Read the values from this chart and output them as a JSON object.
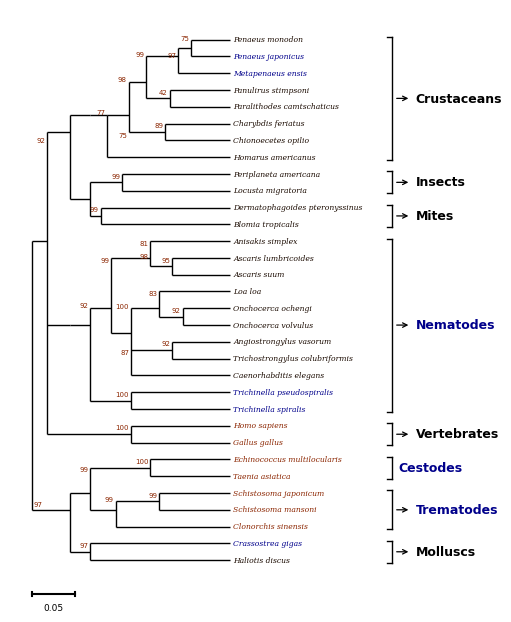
{
  "figsize": [
    5.07,
    6.08
  ],
  "dpi": 100,
  "scale_bar_label": "0.05",
  "taxa": [
    "Penaeus monodon",
    "Penaeus japonicus",
    "Metapenaeus ensis",
    "Panulirus stimpsoni",
    "Paralithodes camtschaticus",
    "Charybdis feriatus",
    "Chionoecetes opilio",
    "Homarus americanus",
    "Periplaneta americana",
    "Locusta migratoria",
    "Dermatophagoides pteronyssinus",
    "Blomia tropicalis",
    "Anisakis simplex",
    "Ascaris lumbricoides",
    "Ascaris suum",
    "Loa loa",
    "Onchocerca ochengi",
    "Onchocerca volvulus",
    "Angiostrongylus vasorum",
    "Trichostrongylus colubriformis",
    "Caenorhabditis elegans",
    "Trichinella pseudospiralis",
    "Trichinella spiralis",
    "Homo sapiens",
    "Gallus gallus",
    "Echinococcus multilocularis",
    "Taenia asiatica",
    "Schistosoma japonicum",
    "Schistosoma mansoni",
    "Clonorchis sinensis",
    "Crassostrea gigas",
    "Haliotis discus"
  ],
  "taxon_colors": {
    "Penaeus monodon": "#1a0a00",
    "Penaeus japonicus": "#00008B",
    "Metapenaeus ensis": "#00008B",
    "Panulirus stimpsoni": "#1a0a00",
    "Paralithodes camtschaticus": "#1a0a00",
    "Charybdis feriatus": "#1a0a00",
    "Chionoecetes opilio": "#1a0a00",
    "Homarus americanus": "#1a0a00",
    "Periplaneta americana": "#1a0a00",
    "Locusta migratoria": "#1a0a00",
    "Dermatophagoides pteronyssinus": "#1a0a00",
    "Blomia tropicalis": "#1a0a00",
    "Anisakis simplex": "#1a0a00",
    "Ascaris lumbricoides": "#1a0a00",
    "Ascaris suum": "#1a0a00",
    "Loa loa": "#1a0a00",
    "Onchocerca ochengi": "#1a0a00",
    "Onchocerca volvulus": "#1a0a00",
    "Angiostrongylus vasorum": "#1a0a00",
    "Trichostrongylus colubriformis": "#1a0a00",
    "Caenorhabditis elegans": "#1a0a00",
    "Trichinella pseudospiralis": "#00008B",
    "Trichinella spiralis": "#00008B",
    "Homo sapiens": "#8B2500",
    "Gallus gallus": "#8B2500",
    "Echinococcus multilocularis": "#8B2500",
    "Taenia asiatica": "#8B2500",
    "Schistosoma japonicum": "#8B2500",
    "Schistosoma mansoni": "#8B2500",
    "Clonorchis sinensis": "#8B2500",
    "Crassostrea gigas": "#00008B",
    "Haliotis discus": "#1a0a00"
  },
  "groups": [
    {
      "name": "Crustaceans",
      "color": "#000000",
      "t1": "Penaeus monodon",
      "t2": "Homarus americanus",
      "arrow": true,
      "bold": true,
      "fontsize": 9
    },
    {
      "name": "Insects",
      "color": "#000000",
      "t1": "Periplaneta americana",
      "t2": "Locusta migratoria",
      "arrow": true,
      "bold": true,
      "fontsize": 9
    },
    {
      "name": "Mites",
      "color": "#000000",
      "t1": "Dermatophagoides pteronyssinus",
      "t2": "Blomia tropicalis",
      "arrow": true,
      "bold": true,
      "fontsize": 9
    },
    {
      "name": "Nematodes",
      "color": "#00008B",
      "t1": "Anisakis simplex",
      "t2": "Trichinella spiralis",
      "arrow": true,
      "bold": true,
      "fontsize": 9
    },
    {
      "name": "Vertebrates",
      "color": "#000000",
      "t1": "Homo sapiens",
      "t2": "Gallus gallus",
      "arrow": true,
      "bold": true,
      "fontsize": 9
    },
    {
      "name": "Cestodes",
      "color": "#00008B",
      "t1": "Echinococcus multilocularis",
      "t2": "Taenia asiatica",
      "arrow": false,
      "bold": true,
      "fontsize": 9
    },
    {
      "name": "Trematodes",
      "color": "#00008B",
      "t1": "Schistosoma japonicum",
      "t2": "Clonorchis sinensis",
      "arrow": true,
      "bold": true,
      "fontsize": 9
    },
    {
      "name": "Molluscs",
      "color": "#000000",
      "t1": "Crassostrea gigas",
      "t2": "Haliotis discus",
      "arrow": true,
      "bold": true,
      "fontsize": 9
    }
  ],
  "lw": 1.0
}
